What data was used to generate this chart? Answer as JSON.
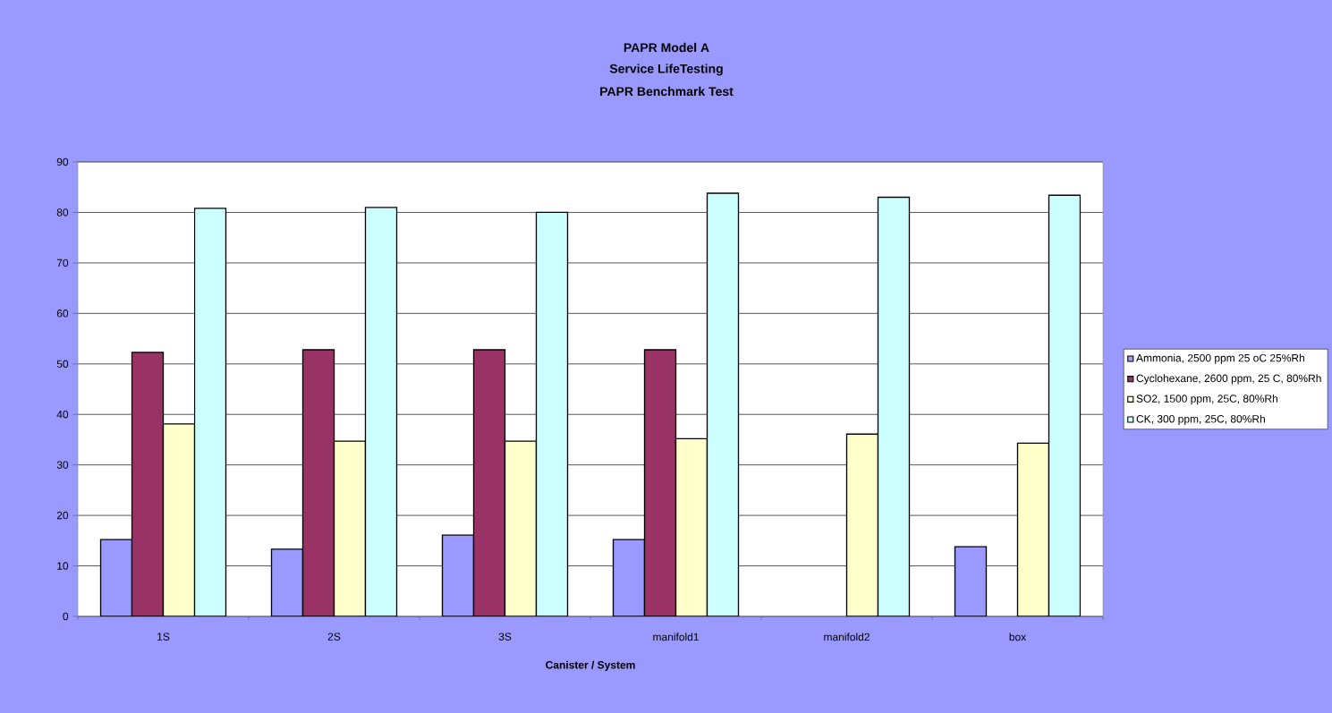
{
  "chart_data": {
    "type": "bar",
    "title": "PAPR Model A",
    "subtitle": "Service LifeTesting",
    "annotations": [
      "PAPR Benchmark Test"
    ],
    "xlabel": "Canister / System",
    "categories": [
      "1S",
      "2S",
      "3S",
      "manifold1",
      "manifold2",
      "box"
    ],
    "series": [
      {
        "name": "Ammonia, 2500 ppm 25 oC 25%Rh",
        "color": "#9999ff",
        "values": [
          15.2,
          13.3,
          16.1,
          15.2,
          null,
          13.8
        ]
      },
      {
        "name": "Cyclohexane, 2600 ppm, 25 C, 80%Rh",
        "color": "#993366",
        "values": [
          52.3,
          52.8,
          52.8,
          52.8,
          null,
          null
        ]
      },
      {
        "name": "SO2, 1500 ppm, 25C, 80%Rh",
        "color": "#ffffcc",
        "values": [
          38.1,
          34.7,
          34.7,
          35.2,
          36.1,
          34.3
        ]
      },
      {
        "name": "CK, 300 ppm, 25C, 80%Rh",
        "color": "#ccffff",
        "values": [
          80.8,
          81,
          80,
          83.8,
          83,
          83.4
        ]
      }
    ],
    "ylim": [
      0,
      90
    ],
    "yticks": [
      0,
      10,
      20,
      30,
      40,
      50,
      60,
      70,
      80,
      90
    ],
    "grid": "y",
    "legend": "right"
  }
}
